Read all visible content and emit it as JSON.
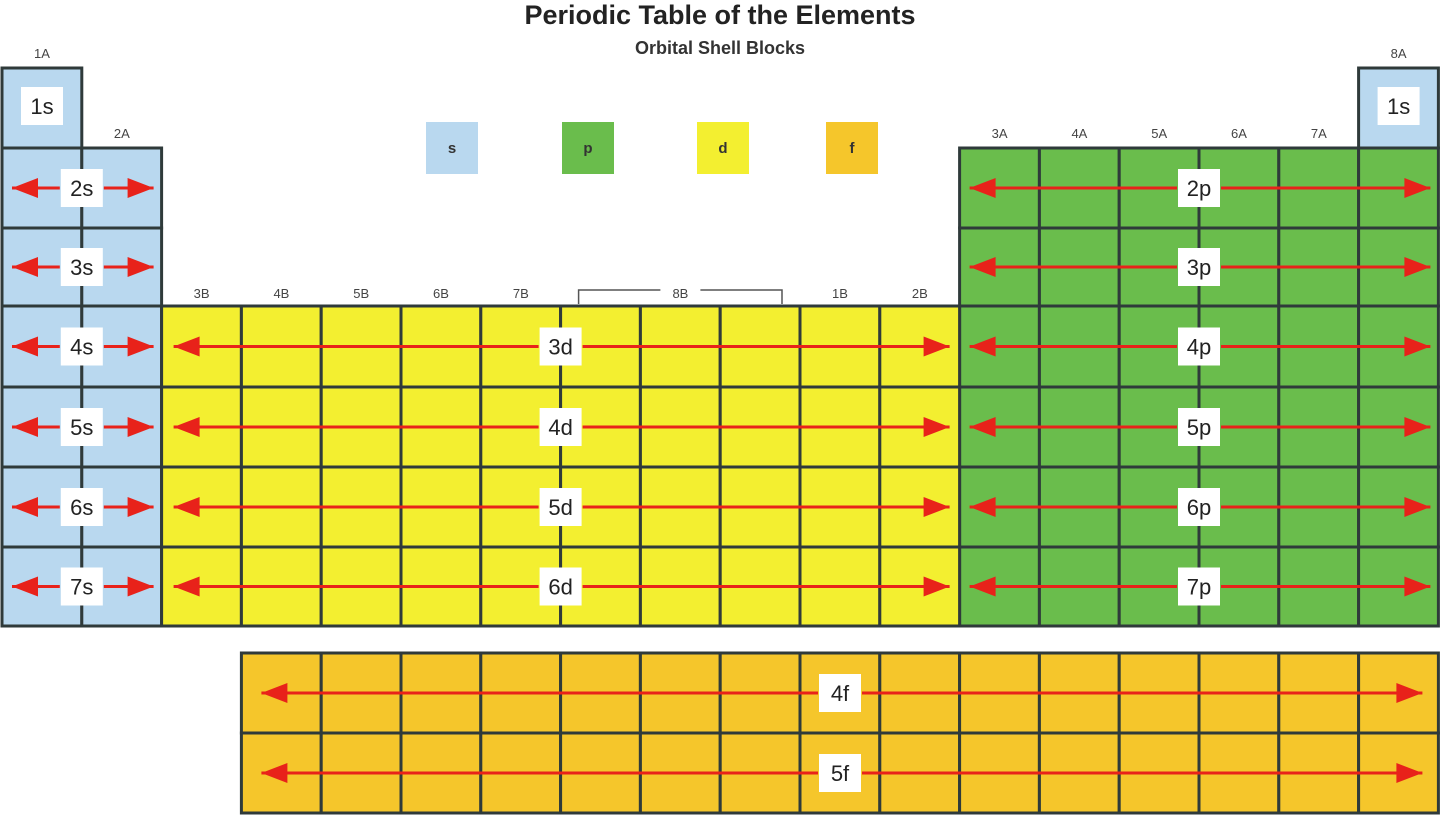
{
  "title": "Periodic Table of the Elements",
  "subtitle": "Orbital Shell Blocks",
  "colors": {
    "s": "#b9d8ef",
    "p": "#6abd4c",
    "d": "#f3ef30",
    "f": "#f5c62b",
    "arrow": "#e8221a",
    "border": "#2f3a3a"
  },
  "legend": [
    {
      "block": "s",
      "label": "s"
    },
    {
      "block": "p",
      "label": "p"
    },
    {
      "block": "d",
      "label": "d"
    },
    {
      "block": "f",
      "label": "f"
    }
  ],
  "group_labels": {
    "g1": "1A",
    "g2": "2A",
    "g3": "3B",
    "g4": "4B",
    "g5": "5B",
    "g6": "6B",
    "g7": "7B",
    "g8_10": "8B",
    "g11": "1B",
    "g12": "2B",
    "g13": "3A",
    "g14": "4A",
    "g15": "5A",
    "g16": "6A",
    "g17": "7A",
    "g18": "8A"
  },
  "s_block": {
    "period1_left": "1s",
    "period1_right": "1s",
    "rows": [
      "2s",
      "3s",
      "4s",
      "5s",
      "6s",
      "7s"
    ]
  },
  "p_block": {
    "rows": [
      "2p",
      "3p",
      "4p",
      "5p",
      "6p",
      "7p"
    ]
  },
  "d_block": {
    "rows": [
      "3d",
      "4d",
      "5d",
      "6d"
    ]
  },
  "f_block": {
    "rows": [
      "4f",
      "5f"
    ]
  }
}
